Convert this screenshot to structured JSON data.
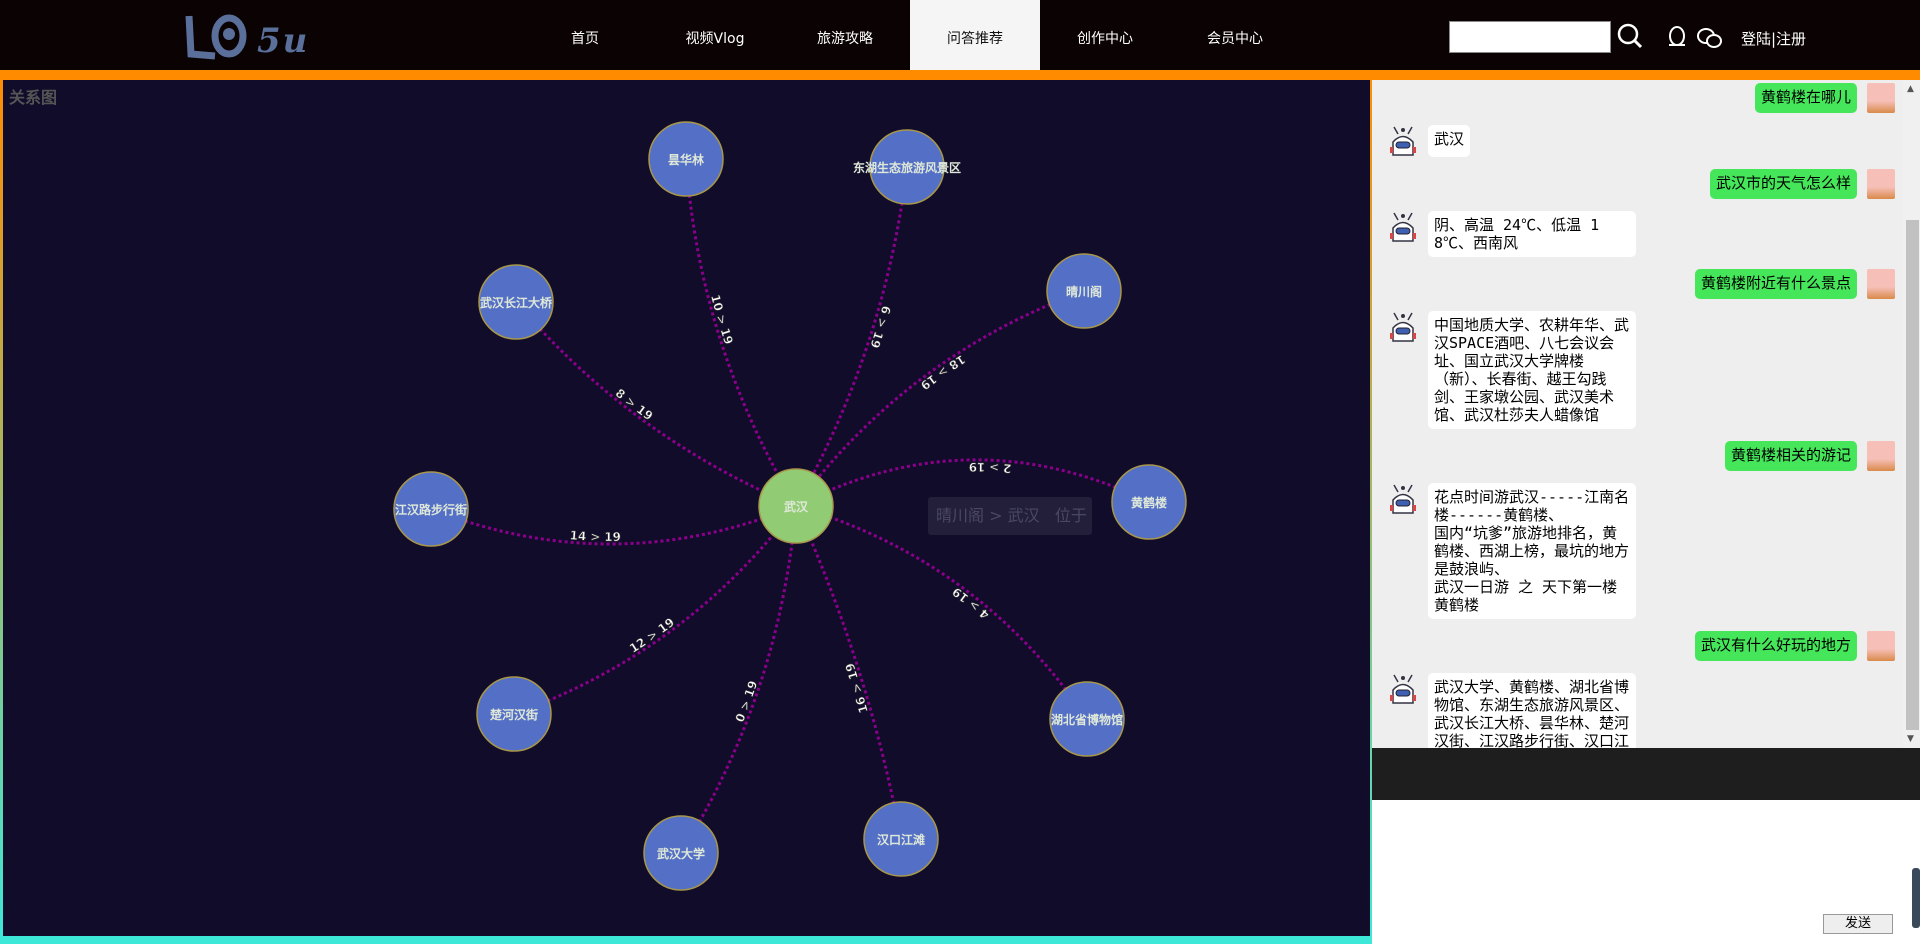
{
  "header": {
    "logo": "LO 5U",
    "nav": [
      {
        "label": "首页"
      },
      {
        "label": "视频Vlog"
      },
      {
        "label": "旅游攻略"
      },
      {
        "label": "问答推荐",
        "active": true
      },
      {
        "label": "创作中心"
      },
      {
        "label": "会员中心"
      }
    ],
    "search_value": "",
    "login": "登陆|注册",
    "icons": [
      "search-icon",
      "qq-icon",
      "wechat-icon"
    ]
  },
  "graph": {
    "title": "关系图",
    "center": {
      "name": "武汉",
      "color": "#91cc75"
    },
    "node_color": "#5470c6",
    "edge_color": "#8b008b",
    "nodes": [
      {
        "name": "昙华林",
        "edge": "10 > 19"
      },
      {
        "name": "东湖生态旅游风景区",
        "edge": "6 > 19"
      },
      {
        "name": "晴川阁",
        "edge": "18 > 19"
      },
      {
        "name": "武汉长江大桥",
        "edge": "8 > 19"
      },
      {
        "name": "江汉路步行街",
        "edge": "14 > 19"
      },
      {
        "name": "黄鹤楼",
        "edge": "2 > 19"
      },
      {
        "name": "楚河汉街",
        "edge": "12 > 19"
      },
      {
        "name": "武汉大学",
        "edge": "0 > 19"
      },
      {
        "name": "汉口江滩",
        "edge": "16 > 19"
      },
      {
        "name": "湖北省博物馆",
        "edge": "4 > 19"
      }
    ],
    "tooltip": "晴川阁 > 武汉   位于"
  },
  "chat": {
    "messages": [
      {
        "role": "user",
        "text": "黄鹤楼在哪儿"
      },
      {
        "role": "bot",
        "text": "武汉"
      },
      {
        "role": "user",
        "text": "武汉市的天气怎么样"
      },
      {
        "role": "bot",
        "text": "阴、高温 24℃、低温 18℃、西南风"
      },
      {
        "role": "user",
        "text": "黄鹤楼附近有什么景点"
      },
      {
        "role": "bot",
        "text": "中国地质大学、农耕年华、武汉SPACE酒吧、八七会议会址、国立武汉大学牌楼（新）、长春街、越王勾践剑、王家墩公园、武汉美术馆、武汉杜莎夫人蜡像馆"
      },
      {
        "role": "user",
        "text": "黄鹤楼相关的游记"
      },
      {
        "role": "bot",
        "text": "花点时间游武汉-----江南名楼------黄鹤楼、\n国内“坑爹”旅游地排名，黄鹤楼、西湖上榜，最坑的地方是鼓浪屿、\n武汉一日游 之 天下第一楼黄鹤楼"
      },
      {
        "role": "user",
        "text": "武汉有什么好玩的地方"
      },
      {
        "role": "bot",
        "text": "武汉大学、黄鹤楼、湖北省博物馆、东湖生态旅游风景区、武汉长江大桥、昙华林、楚河汉街、江汉路步行街、汉口江滩、晴川阁"
      }
    ],
    "input_value": "",
    "send_label": "发送"
  }
}
